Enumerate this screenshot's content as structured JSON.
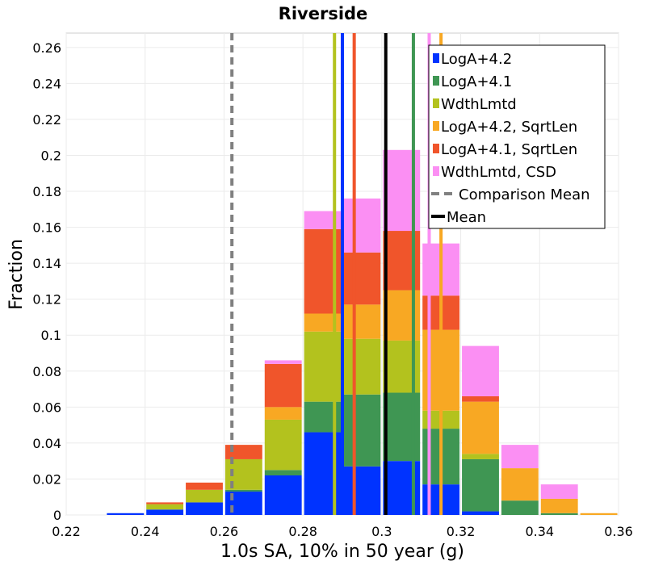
{
  "chart_data": {
    "type": "bar",
    "stacked": true,
    "title": "Riverside",
    "xlabel": "1.0s SA, 10% in 50 year (g)",
    "ylabel": "Fraction",
    "xlim": [
      0.22,
      0.36
    ],
    "ylim": [
      0,
      0.268
    ],
    "grid": true,
    "legend_position": "top-right",
    "x_ticks": [
      "0.22",
      "0.24",
      "0.26",
      "0.28",
      "0.3",
      "0.32",
      "0.34",
      "0.36"
    ],
    "y_ticks": [
      "0",
      "0.02",
      "0.04",
      "0.06",
      "0.08",
      "0.1",
      "0.12",
      "0.14",
      "0.16",
      "0.18",
      "0.2",
      "0.22",
      "0.24",
      "0.26"
    ],
    "bin_starts": [
      0.23,
      0.24,
      0.25,
      0.26,
      0.27,
      0.28,
      0.29,
      0.3,
      0.31,
      0.32,
      0.33,
      0.34,
      0.35
    ],
    "bin_width": 0.01,
    "series": [
      {
        "name": "LogA+4.2",
        "color": "#0033ff",
        "values": [
          0.001,
          0.003,
          0.007,
          0.013,
          0.022,
          0.046,
          0.027,
          0.03,
          0.017,
          0.002,
          0.0,
          0.0,
          0.0
        ]
      },
      {
        "name": "LogA+4.1",
        "color": "#3f9653",
        "values": [
          0.0,
          0.0,
          0.0,
          0.001,
          0.003,
          0.017,
          0.04,
          0.038,
          0.031,
          0.029,
          0.008,
          0.001,
          0.0
        ]
      },
      {
        "name": "WdthLmtd",
        "color": "#b3c21e",
        "values": [
          0.0,
          0.003,
          0.007,
          0.017,
          0.028,
          0.039,
          0.031,
          0.029,
          0.01,
          0.003,
          0.0,
          0.0,
          0.0
        ]
      },
      {
        "name": "LogA+4.2, SqrtLen",
        "color": "#f8a823",
        "values": [
          0.0,
          0.0,
          0.0,
          0.0,
          0.007,
          0.01,
          0.019,
          0.028,
          0.045,
          0.029,
          0.018,
          0.008,
          0.001
        ]
      },
      {
        "name": "LogA+4.1, SqrtLen",
        "color": "#f0552b",
        "values": [
          0.0,
          0.001,
          0.004,
          0.008,
          0.024,
          0.047,
          0.029,
          0.033,
          0.019,
          0.003,
          0.0,
          0.0,
          0.0
        ]
      },
      {
        "name": "WdthLmtd, CSD",
        "color": "#fb8ff3",
        "values": [
          0.0,
          0.0,
          0.0,
          0.0,
          0.002,
          0.01,
          0.03,
          0.045,
          0.029,
          0.028,
          0.013,
          0.008,
          0.0
        ]
      }
    ],
    "vertical_lines": [
      {
        "series": "LogA+4.2",
        "x": 0.29,
        "color": "#0033ff",
        "style": "solid"
      },
      {
        "series": "LogA+4.1",
        "x": 0.308,
        "color": "#3f9653",
        "style": "solid"
      },
      {
        "series": "WdthLmtd",
        "x": 0.288,
        "color": "#b3c21e",
        "style": "solid"
      },
      {
        "series": "LogA+4.2, SqrtLen",
        "x": 0.315,
        "color": "#f8a823",
        "style": "solid"
      },
      {
        "series": "LogA+4.1, SqrtLen",
        "x": 0.293,
        "color": "#f0552b",
        "style": "solid"
      },
      {
        "series": "WdthLmtd, CSD",
        "x": 0.312,
        "color": "#fb8ff3",
        "style": "solid"
      },
      {
        "series": "Comparison Mean",
        "x": 0.262,
        "color": "#808080",
        "style": "dashed"
      },
      {
        "series": "Mean",
        "x": 0.301,
        "color": "#000000",
        "style": "solid"
      }
    ],
    "legend": [
      {
        "label": "LogA+4.2",
        "color": "#0033ff",
        "marker": "square"
      },
      {
        "label": "LogA+4.1",
        "color": "#3f9653",
        "marker": "square"
      },
      {
        "label": "WdthLmtd",
        "color": "#b3c21e",
        "marker": "square"
      },
      {
        "label": "LogA+4.2, SqrtLen",
        "color": "#f8a823",
        "marker": "square"
      },
      {
        "label": "LogA+4.1, SqrtLen",
        "color": "#f0552b",
        "marker": "square"
      },
      {
        "label": "WdthLmtd, CSD",
        "color": "#fb8ff3",
        "marker": "square"
      },
      {
        "label": "Comparison Mean",
        "color": "#808080",
        "marker": "dashed-line"
      },
      {
        "label": "Mean",
        "color": "#000000",
        "marker": "line"
      }
    ]
  }
}
